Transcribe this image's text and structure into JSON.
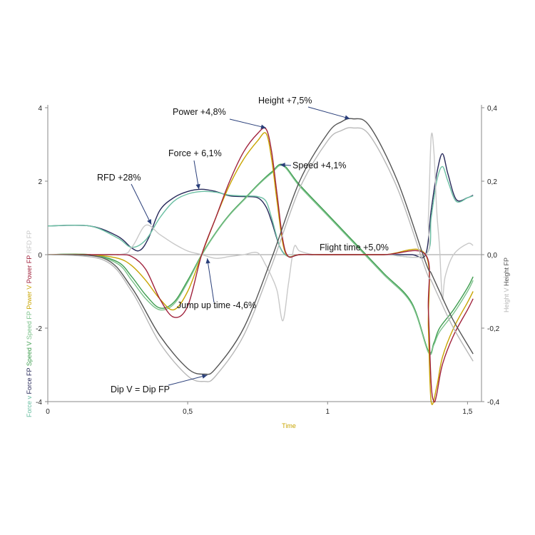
{
  "chart_data": {
    "type": "line",
    "xlabel": "Time",
    "xlim": [
      0,
      1.55
    ],
    "ylim_left": [
      -4,
      4
    ],
    "ylim_right": [
      -0.4,
      0.4
    ],
    "x_ticks": [
      "0",
      "0,5",
      "1",
      "1,5"
    ],
    "y_left_ticks": [
      "4",
      "2",
      "0",
      "-2",
      "-4"
    ],
    "y_right_ticks": [
      "0,4",
      "0,2",
      "0,0",
      "-0,2",
      "-0,4"
    ],
    "left_axis_labels": [
      {
        "text": "Force v",
        "color": "#6bbfa3"
      },
      {
        "text": "Force FP",
        "color": "#27295a"
      },
      {
        "text": "Speed V",
        "color": "#3e9d4f"
      },
      {
        "text": "Speed FP",
        "color": "#7cc28b"
      },
      {
        "text": "Power V",
        "color": "#c8a400"
      },
      {
        "text": "Power FP",
        "color": "#a0223c"
      },
      {
        "text": "RFD FP",
        "color": "#c8c8c8"
      }
    ],
    "right_axis_labels": [
      {
        "text": "Height V",
        "color": "#b8b8b8"
      },
      {
        "text": "Height FP",
        "color": "#555555"
      }
    ],
    "annotations": [
      {
        "id": "power",
        "text": "Power +4,8%",
        "x": 0.78,
        "y": 3.45
      },
      {
        "id": "height",
        "text": "Height +7,5%",
        "x": 1.08,
        "y": 3.7
      },
      {
        "id": "force",
        "text": "Force + 6,1%",
        "x": 0.54,
        "y": 1.78
      },
      {
        "id": "speed",
        "text": "Speed +4,1%",
        "x": 0.83,
        "y": 2.45
      },
      {
        "id": "rfd",
        "text": "RFD +28%",
        "x": 0.37,
        "y": 0.82
      },
      {
        "id": "flight",
        "text": "Flight time +5,0%",
        "x": 0.98,
        "y": 0.06
      },
      {
        "id": "jumpup",
        "text": "Jump up time -4,6%",
        "x": 0.57,
        "y": -0.1
      },
      {
        "id": "dip",
        "text": "Dip V = Dip FP",
        "x": 0.57,
        "y": -3.28
      }
    ],
    "series": [
      {
        "color": "#27295a",
        "axis": "left",
        "x": [
          0,
          0.15,
          0.25,
          0.3,
          0.33,
          0.36,
          0.4,
          0.45,
          0.5,
          0.55,
          0.6,
          0.65,
          0.7,
          0.75,
          0.78,
          0.8,
          0.83,
          0.86,
          0.9,
          0.95,
          1.0,
          1.1,
          1.2,
          1.3,
          1.35,
          1.37,
          1.39,
          1.41,
          1.43,
          1.46,
          1.5,
          1.52
        ],
        "y": [
          0.78,
          0.78,
          0.5,
          0.18,
          0.12,
          0.45,
          1.2,
          1.55,
          1.72,
          1.78,
          1.72,
          1.6,
          1.58,
          1.55,
          1.3,
          0.9,
          0.2,
          -0.05,
          0,
          0,
          0,
          0,
          0,
          0,
          0,
          1.2,
          2.2,
          2.75,
          2.2,
          1.5,
          1.55,
          1.62
        ]
      },
      {
        "color": "#6bbfa3",
        "axis": "left",
        "x": [
          0,
          0.15,
          0.25,
          0.3,
          0.35,
          0.4,
          0.45,
          0.5,
          0.55,
          0.6,
          0.65,
          0.7,
          0.75,
          0.78,
          0.8,
          0.83,
          0.86,
          0.9,
          1.0,
          1.2,
          1.35,
          1.37,
          1.39,
          1.41,
          1.43,
          1.46,
          1.5,
          1.52
        ],
        "y": [
          0.78,
          0.78,
          0.45,
          0.2,
          0.4,
          1.0,
          1.45,
          1.65,
          1.72,
          1.7,
          1.62,
          1.6,
          1.58,
          1.45,
          1.0,
          0.2,
          -0.05,
          0,
          0,
          0,
          0,
          1.0,
          2.0,
          2.4,
          2.0,
          1.45,
          1.55,
          1.6
        ]
      },
      {
        "color": "#c8c8c8",
        "axis": "left",
        "x": [
          0,
          0.25,
          0.3,
          0.35,
          0.4,
          0.45,
          0.5,
          0.55,
          0.6,
          0.65,
          0.7,
          0.75,
          0.78,
          0.8,
          0.82,
          0.84,
          0.86,
          0.88,
          0.9,
          0.95,
          1.0,
          1.2,
          1.35,
          1.36,
          1.37,
          1.38,
          1.39,
          1.4,
          1.41,
          1.42,
          1.45,
          1.5,
          1.52
        ],
        "y": [
          0,
          0,
          0.2,
          0.8,
          0.55,
          0.3,
          0.1,
          0,
          -0.1,
          -0.05,
          0,
          0.05,
          -0.3,
          -0.6,
          -1.0,
          -1.8,
          -0.8,
          0.2,
          0.1,
          0,
          0,
          0,
          0,
          1.0,
          3.2,
          2.8,
          1.2,
          0.2,
          -1.2,
          -0.6,
          0,
          0.3,
          0.25
        ]
      },
      {
        "color": "#3e9d4f",
        "axis": "left",
        "x": [
          0,
          0.15,
          0.25,
          0.3,
          0.35,
          0.4,
          0.45,
          0.5,
          0.55,
          0.6,
          0.65,
          0.7,
          0.75,
          0.8,
          0.84,
          0.9,
          1.0,
          1.1,
          1.2,
          1.3,
          1.36,
          1.38,
          1.4,
          1.45,
          1.5,
          1.52
        ],
        "y": [
          0,
          0,
          -0.2,
          -0.6,
          -1.1,
          -1.45,
          -1.3,
          -0.7,
          0,
          0.6,
          1.1,
          1.5,
          1.9,
          2.25,
          2.45,
          1.9,
          1.1,
          0.3,
          -0.5,
          -1.3,
          -2.62,
          -2.4,
          -2.0,
          -1.5,
          -0.9,
          -0.6
        ]
      },
      {
        "color": "#7cc28b",
        "axis": "left",
        "x": [
          0,
          0.15,
          0.25,
          0.3,
          0.35,
          0.4,
          0.45,
          0.5,
          0.55,
          0.6,
          0.65,
          0.7,
          0.75,
          0.8,
          0.84,
          0.9,
          1.0,
          1.1,
          1.2,
          1.3,
          1.36,
          1.38,
          1.4,
          1.45,
          1.5,
          1.52
        ],
        "y": [
          0,
          0,
          -0.25,
          -0.7,
          -1.2,
          -1.5,
          -1.35,
          -0.75,
          -0.02,
          0.58,
          1.08,
          1.48,
          1.88,
          2.22,
          2.42,
          1.86,
          1.06,
          0.26,
          -0.54,
          -1.34,
          -2.66,
          -2.45,
          -2.1,
          -1.6,
          -1.0,
          -0.7
        ]
      },
      {
        "color": "#c8a400",
        "axis": "left",
        "x": [
          0,
          0.15,
          0.25,
          0.3,
          0.35,
          0.4,
          0.45,
          0.5,
          0.55,
          0.6,
          0.65,
          0.7,
          0.75,
          0.78,
          0.8,
          0.82,
          0.84,
          0.86,
          0.9,
          1.0,
          1.2,
          1.35,
          1.36,
          1.37,
          1.39,
          1.41,
          1.45,
          1.5,
          1.52
        ],
        "y": [
          0,
          0,
          -0.1,
          -0.3,
          -0.7,
          -1.2,
          -1.5,
          -1.0,
          0,
          1.0,
          1.9,
          2.6,
          3.1,
          3.3,
          2.6,
          1.4,
          0.3,
          -0.05,
          0,
          0,
          0,
          0,
          -2.0,
          -4.0,
          -3.6,
          -2.8,
          -2.0,
          -1.3,
          -1.0
        ]
      },
      {
        "color": "#a0223c",
        "axis": "left",
        "x": [
          0,
          0.15,
          0.25,
          0.3,
          0.35,
          0.4,
          0.45,
          0.5,
          0.55,
          0.6,
          0.65,
          0.7,
          0.75,
          0.78,
          0.8,
          0.82,
          0.84,
          0.86,
          0.9,
          1.0,
          1.2,
          1.35,
          1.36,
          1.37,
          1.38,
          1.39,
          1.41,
          1.45,
          1.5,
          1.52
        ],
        "y": [
          0,
          0,
          0,
          -0.05,
          -0.4,
          -1.2,
          -1.7,
          -1.4,
          0,
          1.0,
          2.0,
          2.8,
          3.3,
          3.42,
          2.8,
          1.6,
          0.4,
          -0.05,
          0,
          0,
          0,
          0,
          -1.5,
          -3.5,
          -4.0,
          -3.8,
          -3.0,
          -2.2,
          -1.5,
          -1.2
        ]
      },
      {
        "color": "#555555",
        "axis": "right",
        "x": [
          0,
          0.2,
          0.3,
          0.4,
          0.5,
          0.56,
          0.6,
          0.7,
          0.8,
          0.9,
          1.0,
          1.05,
          1.09,
          1.15,
          1.25,
          1.35,
          1.37,
          1.4,
          1.45,
          1.52
        ],
        "y": [
          0,
          -0.01,
          -0.09,
          -0.22,
          -0.31,
          -0.325,
          -0.31,
          -0.2,
          -0.01,
          0.2,
          0.33,
          0.362,
          0.37,
          0.35,
          0.2,
          -0.02,
          -0.05,
          -0.1,
          -0.18,
          -0.27
        ]
      },
      {
        "color": "#b8b8b8",
        "axis": "right",
        "x": [
          0,
          0.2,
          0.3,
          0.4,
          0.5,
          0.56,
          0.6,
          0.7,
          0.8,
          0.9,
          1.0,
          1.05,
          1.09,
          1.15,
          1.25,
          1.35,
          1.37,
          1.4,
          1.45,
          1.52
        ],
        "y": [
          0,
          -0.015,
          -0.1,
          -0.24,
          -0.33,
          -0.345,
          -0.33,
          -0.22,
          -0.03,
          0.18,
          0.31,
          0.338,
          0.345,
          0.325,
          0.18,
          -0.04,
          -0.07,
          -0.12,
          -0.2,
          -0.29
        ]
      }
    ]
  }
}
